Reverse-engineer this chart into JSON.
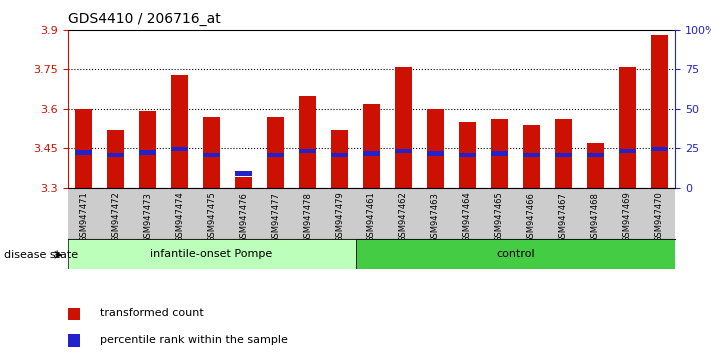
{
  "title": "GDS4410 / 206716_at",
  "samples": [
    "GSM947471",
    "GSM947472",
    "GSM947473",
    "GSM947474",
    "GSM947475",
    "GSM947476",
    "GSM947477",
    "GSM947478",
    "GSM947479",
    "GSM947461",
    "GSM947462",
    "GSM947463",
    "GSM947464",
    "GSM947465",
    "GSM947466",
    "GSM947467",
    "GSM947468",
    "GSM947469",
    "GSM947470"
  ],
  "red_values": [
    3.6,
    3.52,
    3.59,
    3.73,
    3.57,
    3.34,
    3.57,
    3.65,
    3.52,
    3.62,
    3.76,
    3.6,
    3.55,
    3.56,
    3.54,
    3.56,
    3.47,
    3.76,
    3.88
  ],
  "blue_heights": [
    0.018,
    0.018,
    0.018,
    0.018,
    0.018,
    0.018,
    0.018,
    0.018,
    0.018,
    0.018,
    0.018,
    0.018,
    0.018,
    0.018,
    0.018,
    0.018,
    0.018,
    0.018,
    0.018
  ],
  "blue_bottoms": [
    3.425,
    3.415,
    3.425,
    3.438,
    3.415,
    3.345,
    3.415,
    3.43,
    3.415,
    3.422,
    3.43,
    3.422,
    3.415,
    3.422,
    3.415,
    3.415,
    3.415,
    3.43,
    3.438
  ],
  "group1_label": "infantile-onset Pompe",
  "group2_label": "control",
  "group1_count": 9,
  "group2_count": 10,
  "ymin": 3.3,
  "ymax": 3.9,
  "yticks": [
    3.3,
    3.45,
    3.6,
    3.75,
    3.9
  ],
  "ytick_labels": [
    "3.3",
    "3.45",
    "3.6",
    "3.75",
    "3.9"
  ],
  "right_ytick_vals": [
    3.3,
    3.45,
    3.6,
    3.75,
    3.9
  ],
  "right_ytick_labels": [
    "0",
    "25",
    "50",
    "75",
    "100%"
  ],
  "bar_color": "#cc1100",
  "blue_color": "#2222cc",
  "group1_bg": "#bbffbb",
  "group2_bg": "#44cc44",
  "tick_color": "#cc1100",
  "right_axis_color": "#2222cc",
  "legend_red": "transformed count",
  "legend_blue": "percentile rank within the sample",
  "disease_state_label": "disease state",
  "bar_width": 0.55,
  "xtick_bg": "#cccccc"
}
